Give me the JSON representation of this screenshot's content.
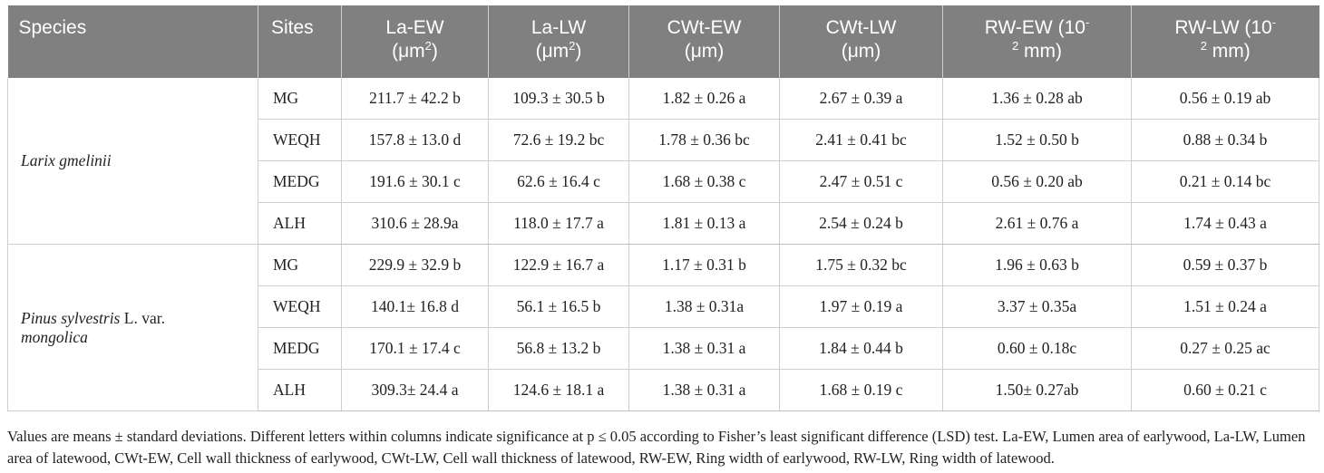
{
  "headers": {
    "species": "Species",
    "sites": "Sites",
    "la_ew": "La-EW",
    "la_ew_unit": "(μm",
    "la_lw": "La-LW",
    "la_lw_unit": "(μm",
    "unit_sq": "2",
    "unit_close": ")",
    "cwt_ew": "CWt-EW",
    "cwt_ew_unit": "(μm)",
    "cwt_lw": "CWt-LW",
    "cwt_lw_unit": "(μm)",
    "rw_ew": "RW-EW (10",
    "rw_lw": "RW-LW (10",
    "rw_exp": "-",
    "rw_exp2": "2",
    "rw_unit": " mm)"
  },
  "groups": [
    {
      "species_italic": "Larix gmelinii",
      "species_roman": "",
      "species_italic2": "",
      "rows": [
        {
          "site": "MG",
          "la_ew": "211.7 ± 42.2 b",
          "la_lw": "109.3 ± 30.5 b",
          "cwt_ew": "1.82 ± 0.26 a",
          "cwt_lw": "2.67 ± 0.39 a",
          "rw_ew": "1.36 ± 0.28 ab",
          "rw_lw": "0.56 ± 0.19 ab"
        },
        {
          "site": "WEQH",
          "la_ew": "157.8 ± 13.0 d",
          "la_lw": " 72.6 ± 19.2 bc",
          "cwt_ew": "1.78 ± 0.36 bc",
          "cwt_lw": "2.41 ± 0.41 bc",
          "rw_ew": "1.52 ± 0.50 b",
          "rw_lw": "0.88 ± 0.34 b"
        },
        {
          "site": "MEDG",
          "la_ew": "191.6 ± 30.1 c",
          "la_lw": "62.6 ± 16.4 c",
          "cwt_ew": "1.68 ± 0.38 c",
          "cwt_lw": "2.47 ± 0.51 c",
          "rw_ew": "0.56 ± 0.20 ab",
          "rw_lw": "0.21 ± 0.14 bc"
        },
        {
          "site": "ALH",
          "la_ew": "310.6 ± 28.9a",
          "la_lw": "118.0 ± 17.7 a",
          "cwt_ew": "1.81 ± 0.13 a",
          "cwt_lw": "2.54 ± 0.24 b",
          "rw_ew": "2.61 ± 0.76 a",
          "rw_lw": "1.74 ± 0.43 a"
        }
      ]
    },
    {
      "species_italic": "Pinus sylvestris",
      "species_roman": " L. var.",
      "species_italic2": "mongolica",
      "rows": [
        {
          "site": "MG",
          "la_ew": "229.9 ± 32.9 b",
          "la_lw": "122.9 ± 16.7 a",
          "cwt_ew": "1.17 ± 0.31 b",
          "cwt_lw": "1.75 ± 0.32 bc",
          "rw_ew": "1.96 ± 0.63 b",
          "rw_lw": "0.59 ± 0.37 b"
        },
        {
          "site": "WEQH",
          "la_ew": "140.1± 16.8 d",
          "la_lw": "56.1 ± 16.5 b",
          "cwt_ew": "1.38 ± 0.31a",
          "cwt_lw": "1.97 ± 0.19 a",
          "rw_ew": "3.37 ± 0.35a",
          "rw_lw": "1.51 ± 0.24 a"
        },
        {
          "site": "MEDG",
          "la_ew": "170.1 ± 17.4 c",
          "la_lw": "56.8 ± 13.2 b",
          "cwt_ew": "1.38 ± 0.31 a",
          "cwt_lw": "1.84 ± 0.44 b",
          "rw_ew": "0.60 ± 0.18c",
          "rw_lw": "0.27 ± 0.25 ac"
        },
        {
          "site": "ALH",
          "la_ew": "309.3± 24.4 a",
          "la_lw": "124.6 ± 18.1 a",
          "cwt_ew": "1.38 ± 0.31 a",
          "cwt_lw": "1.68 ± 0.19 c",
          "rw_ew": " 1.50± 0.27ab",
          "rw_lw": "0.60 ± 0.21 c"
        }
      ]
    }
  ],
  "footnote": "Values are means ± standard deviations. Different letters within columns indicate significance at p ≤ 0.05 according to Fisher’s least significant difference (LSD) test. La-EW, Lumen area of earlywood, La-LW, Lumen area of latewood, CWt-EW, Cell wall thickness of earlywood, CWt-LW, Cell wall thickness of latewood, RW-EW, Ring width of earlywood, RW-LW, Ring width of latewood."
}
